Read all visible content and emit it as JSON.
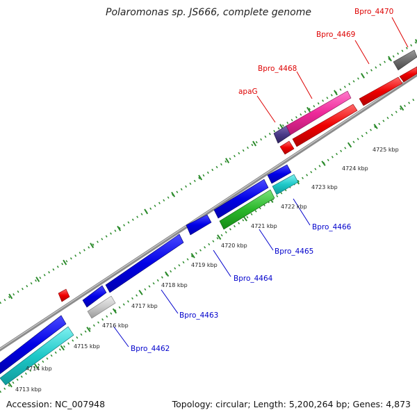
{
  "title": "Polaromonas sp. JS666, complete genome",
  "footer": {
    "accession": "Accession: NC_007948",
    "summary": "Topology: circular; Length: 5,200,264 bp; Genes: 4,873"
  },
  "colors": {
    "backbone": "#7f7f7f",
    "tick": "#2a8a2a",
    "label_forward": "#dd0000",
    "label_reverse": "#0000cc"
  },
  "kbp_labels": [
    "4713 kbp",
    "4714 kbp",
    "4715 kbp",
    "4716 kbp",
    "4717 kbp",
    "4718 kbp",
    "4719 kbp",
    "4720 kbp",
    "4721 kbp",
    "4722 kbp",
    "4723 kbp",
    "4724 kbp",
    "4725 kbp"
  ],
  "gene_labels": {
    "forward": [
      "apaG",
      "Bpro_4468",
      "Bpro_4469",
      "Bpro_4470"
    ],
    "reverse": [
      "Bpro_4462",
      "Bpro_4463",
      "Bpro_4464",
      "Bpro_4465",
      "Bpro_4466"
    ]
  }
}
